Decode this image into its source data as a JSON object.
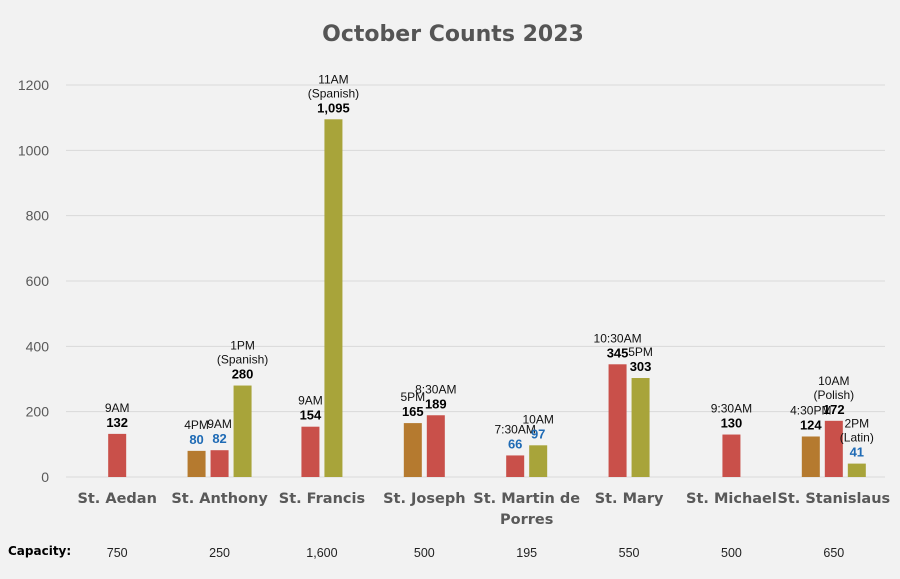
{
  "chart_data": {
    "type": "bar",
    "title": "October Counts 2023",
    "ylim": [
      0,
      1200
    ],
    "yticks": [
      0,
      200,
      400,
      600,
      800,
      1000,
      1200
    ],
    "grid": true,
    "colors": {
      "red": "#c9504a",
      "brown": "#b57a2f",
      "olive": "#a8a43a",
      "value_default": "#000000",
      "value_highlight": "#1f6bb5"
    },
    "capacity_label": "Capacity:",
    "groups": [
      {
        "name": [
          "St. Aedan"
        ],
        "capacity": "750",
        "bars": [
          {
            "time": [
              "9AM"
            ],
            "value": 132,
            "label": "132",
            "color": "red"
          }
        ]
      },
      {
        "name": [
          "St. Anthony"
        ],
        "capacity": "250",
        "bars": [
          {
            "time": [
              "4PM"
            ],
            "value": 80,
            "label": "80",
            "color": "brown",
            "highlight": true
          },
          {
            "time": [
              "9AM"
            ],
            "value": 82,
            "label": "82",
            "color": "red",
            "highlight": true
          },
          {
            "time": [
              "1PM",
              "(Spanish)"
            ],
            "value": 280,
            "label": "280",
            "color": "olive"
          }
        ]
      },
      {
        "name": [
          "St. Francis"
        ],
        "capacity": "1,600",
        "bars": [
          {
            "time": [
              "9AM"
            ],
            "value": 154,
            "label": "154",
            "color": "red"
          },
          {
            "time": [
              "11AM",
              "(Spanish)"
            ],
            "value": 1095,
            "label": "1,095",
            "color": "olive"
          }
        ]
      },
      {
        "name": [
          "St. Joseph"
        ],
        "capacity": "500",
        "bars": [
          {
            "time": [
              "5PM"
            ],
            "value": 165,
            "label": "165",
            "color": "brown"
          },
          {
            "time": [
              "8:30AM"
            ],
            "value": 189,
            "label": "189",
            "color": "red"
          }
        ]
      },
      {
        "name": [
          "St. Martin de",
          "Porres"
        ],
        "capacity": "195",
        "bars": [
          {
            "time": [
              "7:30AM"
            ],
            "value": 66,
            "label": "66",
            "color": "red",
            "highlight": true
          },
          {
            "time": [
              "10AM"
            ],
            "value": 97,
            "label": "97",
            "color": "olive",
            "highlight": true
          }
        ]
      },
      {
        "name": [
          "St. Mary"
        ],
        "capacity": "550",
        "bars": [
          {
            "time": [
              "10:30AM"
            ],
            "value": 345,
            "label": "345",
            "color": "red"
          },
          {
            "time": [
              "5PM"
            ],
            "value": 303,
            "label": "303",
            "color": "olive"
          }
        ]
      },
      {
        "name": [
          "St. Michael"
        ],
        "capacity": "500",
        "bars": [
          {
            "time": [
              "9:30AM"
            ],
            "value": 130,
            "label": "130",
            "color": "red"
          }
        ]
      },
      {
        "name": [
          "St. Stanislaus"
        ],
        "capacity": "650",
        "bars": [
          {
            "time": [
              "4:30PM"
            ],
            "value": 124,
            "label": "124",
            "color": "brown"
          },
          {
            "time": [
              "10AM",
              "(Polish)"
            ],
            "value": 172,
            "label": "172",
            "color": "red"
          },
          {
            "time": [
              "2PM",
              "(Latin)"
            ],
            "value": 41,
            "label": "41",
            "color": "olive",
            "highlight": true
          }
        ]
      }
    ]
  }
}
